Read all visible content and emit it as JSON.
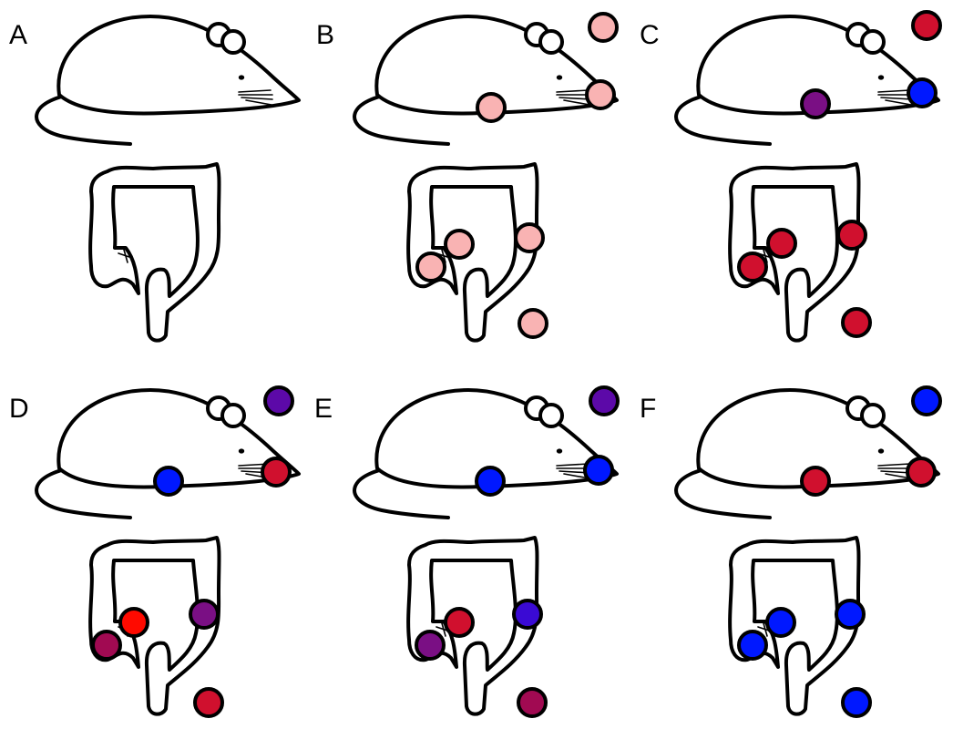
{
  "panels": [
    {
      "label": "A",
      "ref": null,
      "nose": null,
      "body": null,
      "colon_top_left": null,
      "colon_bottom_left": null,
      "colon_right": null,
      "below": null
    },
    {
      "label": "B",
      "ref": "#f9b3b3",
      "nose": "#f9b3b3",
      "body": "#f9b3b3",
      "colon_top_left": "#f9b3b3",
      "colon_bottom_left": "#f9b3b3",
      "colon_right": "#f9b3b3",
      "below": "#f9b3b3"
    },
    {
      "label": "C",
      "ref": "#d0102e",
      "nose": "#0018ff",
      "body": "#7a0f84",
      "colon_top_left": "#d0102e",
      "colon_bottom_left": "#d0102e",
      "colon_right": "#d0102e",
      "below": "#d0102e"
    },
    {
      "label": "D",
      "ref": "#5c09a8",
      "nose": "#d0102e",
      "body": "#0018ff",
      "colon_top_left": "#ff0a00",
      "colon_bottom_left": "#a10a52",
      "colon_right": "#7a0f84",
      "below": "#d0102e"
    },
    {
      "label": "E",
      "ref": "#5c09a8",
      "nose": "#0018ff",
      "body": "#0018ff",
      "colon_top_left": "#d0102e",
      "colon_bottom_left": "#7a0f84",
      "colon_right": "#3a0ad4",
      "below": "#a10a52"
    },
    {
      "label": "F",
      "ref": "#0018ff",
      "nose": "#d0102e",
      "body": "#d0102e",
      "colon_top_left": "#0018ff",
      "colon_bottom_left": "#0018ff",
      "colon_right": "#0018ff",
      "below": "#0018ff"
    }
  ]
}
